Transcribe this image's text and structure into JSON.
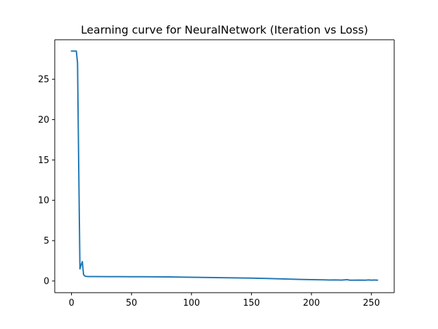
{
  "chart_data": {
    "type": "line",
    "title": "Learning curve for NeuralNetwork (Iteration vs Loss)",
    "xlabel": "",
    "ylabel": "",
    "xlim": [
      -14,
      269
    ],
    "ylim": [
      -1.45,
      29.9
    ],
    "xticks": [
      0,
      50,
      100,
      150,
      200,
      250
    ],
    "yticks": [
      0,
      5,
      10,
      15,
      20,
      25
    ],
    "grid": false,
    "legend": "none",
    "line_color": "#1f77b4",
    "series": [
      {
        "x": [
          0,
          1,
          2,
          3,
          4,
          5,
          6,
          7,
          8,
          9,
          10,
          11,
          12,
          13,
          15,
          20,
          30,
          40,
          50,
          60,
          70,
          80,
          90,
          100,
          110,
          120,
          130,
          140,
          150,
          160,
          170,
          180,
          190,
          200,
          210,
          215,
          220,
          225,
          230,
          232,
          235,
          240,
          245,
          248,
          250,
          252,
          255
        ],
        "y": [
          28.5,
          28.5,
          28.5,
          28.5,
          28.5,
          27.0,
          14.0,
          1.5,
          2.0,
          2.4,
          0.8,
          0.62,
          0.58,
          0.56,
          0.55,
          0.55,
          0.54,
          0.54,
          0.53,
          0.52,
          0.51,
          0.5,
          0.48,
          0.46,
          0.44,
          0.42,
          0.4,
          0.38,
          0.35,
          0.32,
          0.28,
          0.24,
          0.2,
          0.16,
          0.14,
          0.12,
          0.13,
          0.11,
          0.16,
          0.1,
          0.1,
          0.11,
          0.1,
          0.13,
          0.1,
          0.12,
          0.1
        ]
      }
    ]
  }
}
